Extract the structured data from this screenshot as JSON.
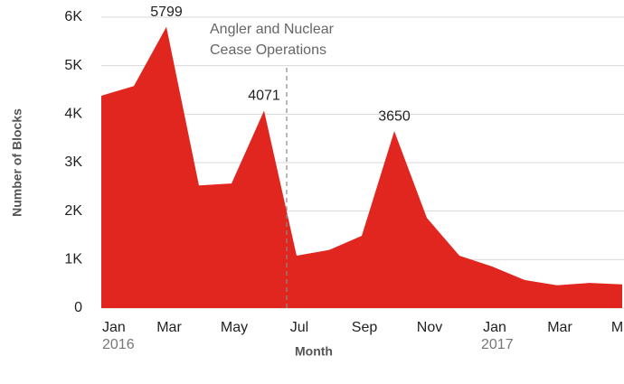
{
  "chart_data": {
    "type": "area",
    "categories": [
      "Jan",
      null,
      "Mar",
      null,
      "May",
      null,
      "Jul",
      null,
      "Sep",
      null,
      "Nov",
      null,
      "Jan",
      null,
      "Mar",
      null,
      "May"
    ],
    "year_labels": [
      "2016",
      null,
      null,
      null,
      null,
      null,
      null,
      null,
      null,
      null,
      null,
      null,
      "2017",
      null,
      null,
      null,
      null
    ],
    "values": [
      4380,
      4580,
      5799,
      2530,
      2570,
      4071,
      1080,
      1200,
      1490,
      3650,
      1860,
      1080,
      860,
      580,
      470,
      520,
      490
    ],
    "value_labels": [
      null,
      null,
      "5799",
      null,
      null,
      "4071",
      null,
      null,
      null,
      "3650",
      null,
      null,
      null,
      null,
      null,
      null,
      null
    ],
    "color": "#e0261f",
    "ylim": [
      0,
      6000
    ],
    "yticks": [
      0,
      {
        "value": 1000,
        "label": "1K"
      },
      {
        "value": 2000,
        "label": "2K"
      },
      {
        "value": 3000,
        "label": "3K"
      },
      {
        "value": 4000,
        "label": "4K"
      },
      {
        "value": 5000,
        "label": "5K"
      },
      {
        "value": 6000,
        "label": "6K"
      }
    ],
    "grid": true,
    "ylabel": "Number of Blocks",
    "xlabel": "Month",
    "annotation": [
      "Angler and Nuclear",
      "Cease Operations"
    ]
  }
}
